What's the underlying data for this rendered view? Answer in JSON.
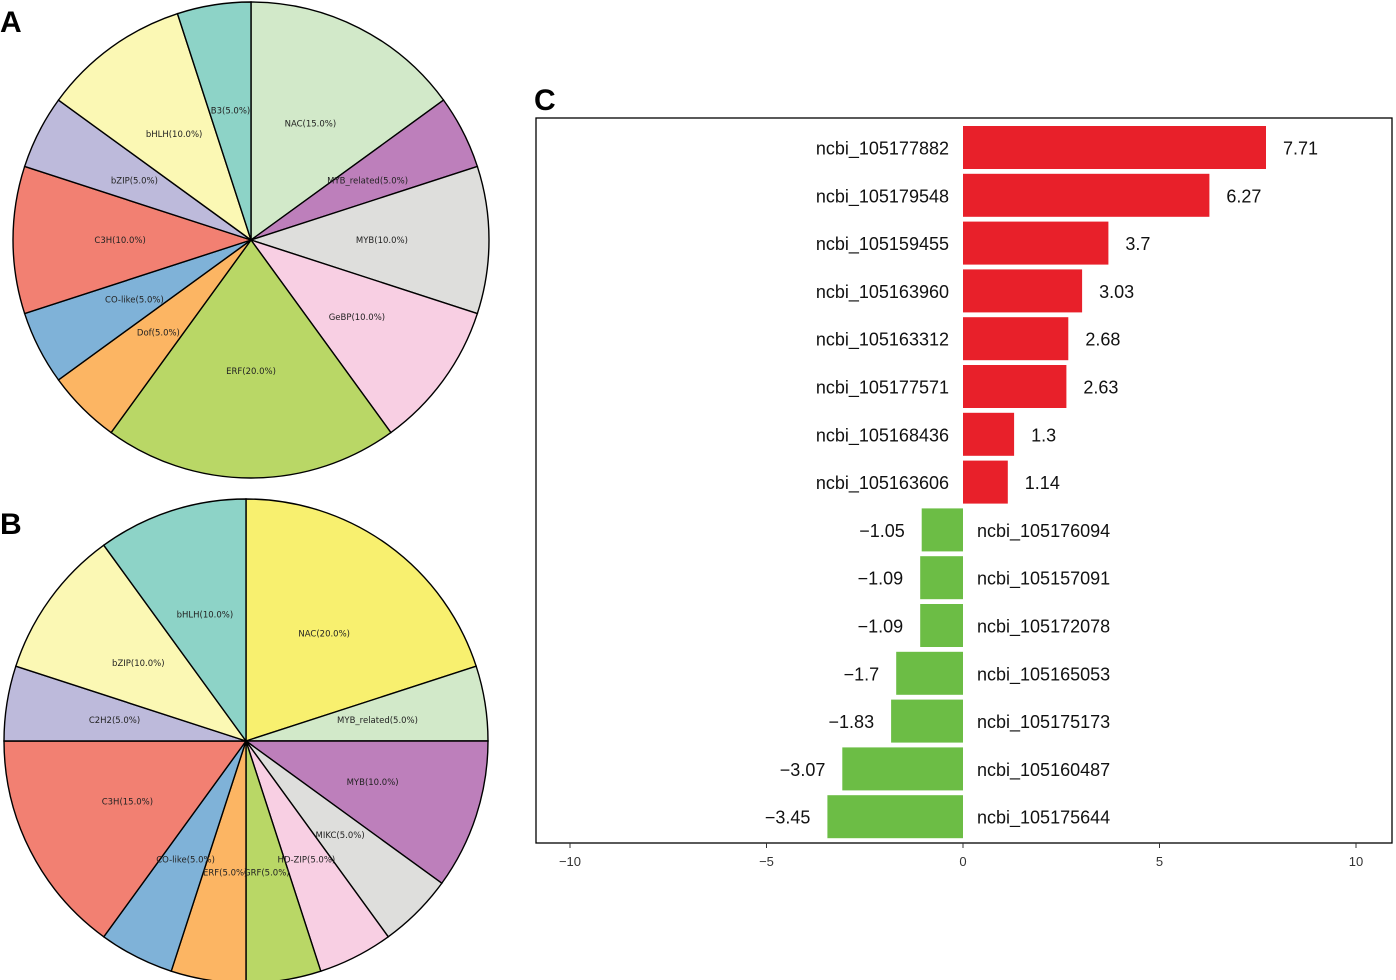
{
  "panel_labels": {
    "a": "A",
    "b": "B",
    "c": "C"
  },
  "chart_data": [
    {
      "type": "pie",
      "panel": "A",
      "slices": [
        {
          "label": "NAC(15.0%)",
          "value": 15,
          "color": "#d2e9c9"
        },
        {
          "label": "MYB_related(5.0%)",
          "value": 5,
          "color": "#bd7fbb"
        },
        {
          "label": "MYB(10.0%)",
          "value": 10,
          "color": "#dededc"
        },
        {
          "label": "GeBP(10.0%)",
          "value": 10,
          "color": "#f8cfe3"
        },
        {
          "label": "ERF(20.0%)",
          "value": 20,
          "color": "#b9d766"
        },
        {
          "label": "Dof(5.0%)",
          "value": 5,
          "color": "#fcb563"
        },
        {
          "label": "CO-like(5.0%)",
          "value": 5,
          "color": "#7fb2d8"
        },
        {
          "label": "C3H(10.0%)",
          "value": 10,
          "color": "#f28072"
        },
        {
          "label": "bZIP(5.0%)",
          "value": 5,
          "color": "#bdbadb"
        },
        {
          "label": "bHLH(10.0%)",
          "value": 10,
          "color": "#fbf8b4"
        },
        {
          "label": "B3(5.0%)",
          "value": 5,
          "color": "#8dd3c7"
        }
      ]
    },
    {
      "type": "pie",
      "panel": "B",
      "slices": [
        {
          "label": "NAC(20.0%)",
          "value": 20,
          "color": "#f8f06f"
        },
        {
          "label": "MYB_related(5.0%)",
          "value": 5,
          "color": "#d2e9c9"
        },
        {
          "label": "MYB(10.0%)",
          "value": 10,
          "color": "#bd7fbb"
        },
        {
          "label": "MIKC(5.0%)",
          "value": 5,
          "color": "#dededc"
        },
        {
          "label": "HD-ZIP(5.0%)",
          "value": 5,
          "color": "#f8cfe3"
        },
        {
          "label": "GRF(5.0%)",
          "value": 5,
          "color": "#b9d766"
        },
        {
          "label": "ERF(5.0%)",
          "value": 5,
          "color": "#fcb563"
        },
        {
          "label": "CO-like(5.0%)",
          "value": 5,
          "color": "#7fb2d8"
        },
        {
          "label": "C3H(15.0%)",
          "value": 15,
          "color": "#f28072"
        },
        {
          "label": "C2H2(5.0%)",
          "value": 5,
          "color": "#bdbadb"
        },
        {
          "label": "bZIP(10.0%)",
          "value": 10,
          "color": "#fbf8b4"
        },
        {
          "label": "bHLH(10.0%)",
          "value": 10,
          "color": "#8dd3c7"
        }
      ]
    },
    {
      "type": "bar",
      "orientation": "horizontal",
      "panel": "C",
      "xlim": [
        -11.2,
        11
      ],
      "xticks": [
        -10,
        -5,
        0,
        5,
        10
      ],
      "xtick_labels": [
        "−10",
        "−5",
        "0",
        "5",
        "10"
      ],
      "positive_color": "#e8202a",
      "negative_color": "#6cbd45",
      "bars": [
        {
          "gene": "ncbi_105177882",
          "value": 7.71,
          "label": "7.71"
        },
        {
          "gene": "ncbi_105179548",
          "value": 6.27,
          "label": "6.27"
        },
        {
          "gene": "ncbi_105159455",
          "value": 3.7,
          "label": "3.7"
        },
        {
          "gene": "ncbi_105163960",
          "value": 3.03,
          "label": "3.03"
        },
        {
          "gene": "ncbi_105163312",
          "value": 2.68,
          "label": "2.68"
        },
        {
          "gene": "ncbi_105177571",
          "value": 2.63,
          "label": "2.63"
        },
        {
          "gene": "ncbi_105168436",
          "value": 1.3,
          "label": "1.3"
        },
        {
          "gene": "ncbi_105163606",
          "value": 1.14,
          "label": "1.14"
        },
        {
          "gene": "ncbi_105176094",
          "value": -1.05,
          "label": "−1.05"
        },
        {
          "gene": "ncbi_105157091",
          "value": -1.09,
          "label": "−1.09"
        },
        {
          "gene": "ncbi_105172078",
          "value": -1.09,
          "label": "−1.09"
        },
        {
          "gene": "ncbi_105165053",
          "value": -1.7,
          "label": "−1.7"
        },
        {
          "gene": "ncbi_105175173",
          "value": -1.83,
          "label": "−1.83"
        },
        {
          "gene": "ncbi_105160487",
          "value": -3.07,
          "label": "−3.07"
        },
        {
          "gene": "ncbi_105175644",
          "value": -3.45,
          "label": "−3.45"
        }
      ]
    }
  ]
}
